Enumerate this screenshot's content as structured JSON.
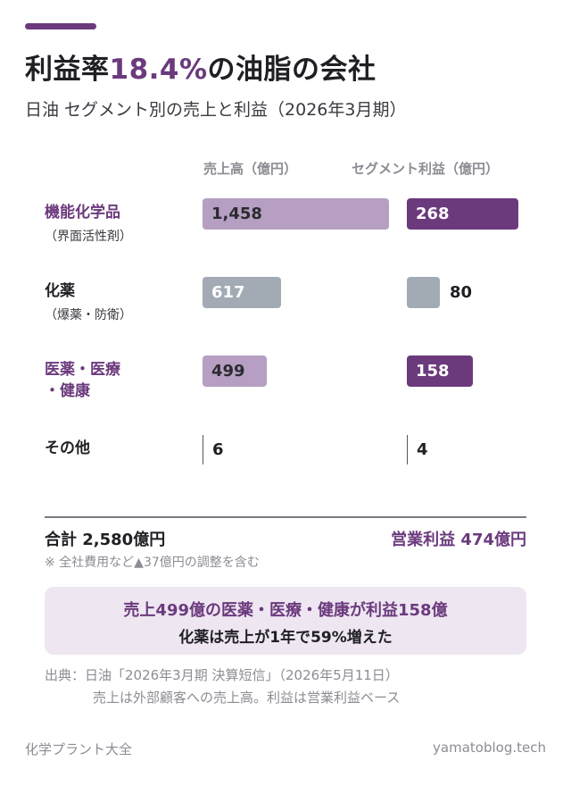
{
  "header": {
    "title_prefix": "利益率",
    "title_highlight": "18.4%",
    "title_suffix": "の油脂の会社",
    "subtitle": "日油 セグメント別の売上と利益（2026年3月期）"
  },
  "chart_data": {
    "type": "bar",
    "orientation": "horizontal",
    "categories": [
      {
        "name": "機能化学品",
        "detail": "（界面活性剤）",
        "highlight": true
      },
      {
        "name": "化薬",
        "detail": "（爆薬・防衛）",
        "highlight": false
      },
      {
        "name": "医薬・医療・健康",
        "detail": "",
        "highlight": true
      },
      {
        "name": "その他",
        "detail": "",
        "highlight": false
      }
    ],
    "category_lines": [
      [
        "機能化学品"
      ],
      [
        "化薬"
      ],
      [
        "医薬・医療",
        "・健康"
      ],
      [
        "その他"
      ]
    ],
    "series": [
      {
        "name": "売上高（億円）",
        "values": [
          1458,
          617,
          499,
          6
        ],
        "labels": [
          "1,458",
          "617",
          "499",
          "6"
        ]
      },
      {
        "name": "セグメント利益（億円）",
        "values": [
          268,
          80,
          158,
          4
        ],
        "labels": [
          "268",
          "80",
          "158",
          "4"
        ]
      }
    ],
    "colors": {
      "highlight_sales": "#b69fc2",
      "highlight_profit": "#6b3a7d",
      "neutral": "#a2abb3",
      "accent": "#6b3a7d"
    }
  },
  "totals": {
    "sales_total": "合計 2,580億円",
    "profit_total": "営業利益 474億円",
    "note": "※ 全社費用など▲37億円の調整を含む"
  },
  "callout": {
    "line1": "売上499億の医薬・医療・健康が利益158億",
    "line2": "化薬は売上が1年で59%増えた"
  },
  "source": {
    "line1": "出典：日油「2026年3月期 決算短信」（2026年5月11日）",
    "line2": "売上は外部顧客への売上高。利益は営業利益ベース"
  },
  "footer": {
    "left": "化学プラント大全",
    "right": "yamatoblog.tech"
  }
}
